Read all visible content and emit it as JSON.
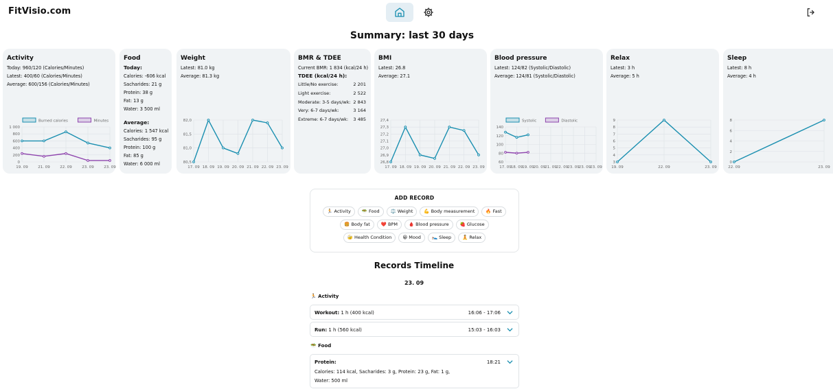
{
  "brand": "FitVisio.com",
  "nav": {
    "home_icon": "home-icon",
    "settings_icon": "gear-icon",
    "logout_icon": "logout-icon"
  },
  "page_title": "Summary: last 30 days",
  "cards": {
    "activity": {
      "title": "Activity",
      "lines": [
        "Today: 960/120 (Calories/Minutes)",
        "Latest: 400/60 (Calories/Minutes)",
        "Average: 600/156 (Calories/Minutes)"
      ]
    },
    "food": {
      "title": "Food",
      "today_label": "Today:",
      "today": [
        "Calories: -606 kcal",
        "Sacharides: 21 g",
        "Protein: 38 g",
        "Fat: 13 g",
        "Water: 3 500 ml"
      ],
      "average_label": "Average:",
      "average": [
        "Calories: 1 547 kcal",
        "Sacharides: 95 g",
        "Protein: 100 g",
        "Fat: 85 g",
        "Water: 6 000 ml"
      ]
    },
    "weight": {
      "title": "Weight",
      "lines": [
        "Latest: 81.0 kg",
        "Average: 81.3 kg"
      ]
    },
    "bmr": {
      "title": "BMR & TDEE",
      "current": "Current BMR: 1 834 (kcal/24 h)",
      "tdee_label": "TDEE (kcal/24 h):",
      "rows": [
        {
          "label": "Little/No exercise:",
          "value": "2 201"
        },
        {
          "label": "Light exercise:",
          "value": "2 522"
        },
        {
          "label": "Moderate: 3-5 days/wk:",
          "value": "2 843"
        },
        {
          "label": "Very: 6-7 days/wk:",
          "value": "3 164"
        },
        {
          "label": "Extreme: 6-7 days/wk:",
          "value": "3 485"
        }
      ]
    },
    "bmi": {
      "title": "BMI",
      "lines": [
        "Latest: 26.8",
        "Average: 27.1"
      ]
    },
    "bp": {
      "title": "Blood pressure",
      "lines": [
        "Latest: 124/82 (Systolic/Diastolic)",
        "Average: 124/81 (Systolic/Diastolic)"
      ]
    },
    "relax": {
      "title": "Relax",
      "lines": [
        "Latest: 3 h",
        "Average: 5 h"
      ]
    },
    "sleep": {
      "title": "Sleep",
      "lines": [
        "Latest: 8 h",
        "Average: 4 h"
      ]
    }
  },
  "chart_data": [
    {
      "id": "activity",
      "type": "line",
      "categories": [
        "19. 09",
        "21. 09",
        "22. 09",
        "23. 09",
        "23. 09"
      ],
      "ylim": [
        0,
        1000
      ],
      "yticks": [
        "1 000",
        "800",
        "600",
        "400",
        "200",
        "0"
      ],
      "legend_position": "top",
      "series": [
        {
          "name": "Burned calories",
          "color": "#1a8fb0",
          "values": [
            600,
            600,
            860,
            540,
            400
          ]
        },
        {
          "name": "Minutes",
          "color": "#8e44ad",
          "values": [
            240,
            160,
            240,
            40,
            40
          ]
        }
      ]
    },
    {
      "id": "weight",
      "type": "line",
      "categories": [
        "17. 09",
        "18. 09",
        "19. 09",
        "20. 09",
        "21. 09",
        "22. 09",
        "23. 09"
      ],
      "ylim": [
        80.5,
        82.0
      ],
      "yticks": [
        "82,0",
        "81,5",
        "81,0",
        "80,5"
      ],
      "series": [
        {
          "color": "#1a8fb0",
          "values": [
            80.5,
            82.0,
            81.0,
            80.8,
            82.0,
            81.9,
            81.0
          ]
        }
      ]
    },
    {
      "id": "bmi",
      "type": "line",
      "categories": [
        "17. 09",
        "18. 09",
        "19. 09",
        "20. 09",
        "21. 09",
        "22. 09",
        "23. 09"
      ],
      "ylim": [
        26.8,
        27.4
      ],
      "yticks": [
        "27,4",
        "27,3",
        "27,2",
        "27,1",
        "27,0",
        "26,9",
        "26,8"
      ],
      "series": [
        {
          "color": "#1a8fb0",
          "values": [
            26.8,
            27.3,
            26.9,
            26.85,
            27.3,
            27.25,
            26.9
          ]
        }
      ]
    },
    {
      "id": "bp",
      "type": "line",
      "categories": [
        "17. 09",
        "18. 09",
        "19. 09",
        "20. 09",
        "21. 09",
        "22. 09",
        "23. 09",
        "23. 09",
        "23. 09"
      ],
      "ylim": [
        60,
        140
      ],
      "yticks": [
        "140",
        "120",
        "100",
        "80",
        "60"
      ],
      "legend_position": "top",
      "series": [
        {
          "name": "Systolic",
          "color": "#1a8fb0",
          "values": [
            128,
            116,
            122,
            null,
            null,
            null,
            null,
            null,
            null
          ]
        },
        {
          "name": "Diastolic",
          "color": "#8e44ad",
          "values": [
            82,
            80,
            82,
            null,
            null,
            null,
            null,
            null,
            null
          ]
        }
      ]
    },
    {
      "id": "relax",
      "type": "line",
      "categories": [
        "19. 09",
        "22. 09",
        "23. 09"
      ],
      "ylim": [
        3,
        9
      ],
      "yticks": [
        "9",
        "8",
        "7",
        "6",
        "5",
        "4",
        "3"
      ],
      "series": [
        {
          "color": "#1a8fb0",
          "values": [
            3,
            9,
            3
          ]
        }
      ]
    },
    {
      "id": "sleep",
      "type": "line",
      "categories": [
        "22. 09",
        "23. 09"
      ],
      "ylim": [
        0,
        8
      ],
      "yticks": [
        "8",
        "6",
        "4",
        "2",
        "0"
      ],
      "series": [
        {
          "color": "#1a8fb0",
          "values": [
            0,
            8
          ]
        }
      ]
    }
  ],
  "add_record": {
    "title": "ADD RECORD",
    "rows": [
      [
        {
          "icon": "🏃",
          "label": "Activity"
        },
        {
          "icon": "🥗",
          "label": "Food"
        },
        {
          "icon": "⚖️",
          "label": "Weight"
        },
        {
          "icon": "💪",
          "label": "Body measurement"
        },
        {
          "icon": "🔥",
          "label": "Fast"
        }
      ],
      [
        {
          "icon": "🍔",
          "label": "Body fat"
        },
        {
          "icon": "❤️",
          "label": "BPM"
        },
        {
          "icon": "🩸",
          "label": "Blood pressure"
        },
        {
          "icon": "🍓",
          "label": "Glucose"
        }
      ],
      [
        {
          "icon": "🤕",
          "label": "Health Condition"
        },
        {
          "icon": "😀",
          "label": "Mood"
        },
        {
          "icon": "🛌",
          "label": "Sleep"
        },
        {
          "icon": "🧘",
          "label": "Relax"
        }
      ]
    ]
  },
  "timeline": {
    "title": "Records Timeline",
    "date": "23. 09",
    "activity_head": "🏃 Activity",
    "food_head": "🥗 Food",
    "records": [
      {
        "name": "Workout:",
        "detail": " 1 h (400 kcal)",
        "time": "16:06 - 17:06"
      },
      {
        "name": "Run:",
        "detail": " 1 h (560 kcal)",
        "time": "15:03 - 16:03"
      },
      {
        "name": "Protein:",
        "detail": "",
        "time": "18:21",
        "body": [
          "Calories: 114 kcal, Sacharides: 3 g, Protein: 23 g, Fat: 1 g,",
          "Water: 500 ml"
        ]
      }
    ]
  }
}
